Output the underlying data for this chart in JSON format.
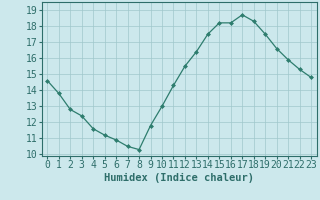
{
  "x": [
    0,
    1,
    2,
    3,
    4,
    5,
    6,
    7,
    8,
    9,
    10,
    11,
    12,
    13,
    14,
    15,
    16,
    17,
    18,
    19,
    20,
    21,
    22,
    23
  ],
  "y": [
    14.6,
    13.8,
    12.8,
    12.4,
    11.6,
    11.2,
    10.9,
    10.5,
    10.3,
    11.8,
    13.0,
    14.3,
    15.5,
    16.4,
    17.5,
    18.2,
    18.2,
    18.7,
    18.3,
    17.5,
    16.6,
    15.9,
    15.3,
    14.8
  ],
  "line_color": "#2e7d6e",
  "marker_color": "#2e7d6e",
  "bg_color": "#cce8ec",
  "grid_color": "#a0c8cc",
  "xlabel": "Humidex (Indice chaleur)",
  "ylabel_ticks": [
    10,
    11,
    12,
    13,
    14,
    15,
    16,
    17,
    18,
    19
  ],
  "xlim": [
    -0.5,
    23.5
  ],
  "ylim": [
    9.9,
    19.5
  ],
  "xlabel_fontsize": 7.5,
  "tick_fontsize": 7,
  "text_color": "#2e6e6a"
}
